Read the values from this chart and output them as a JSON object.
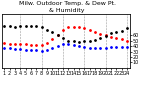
{
  "title": "Milw. Outdoor Temp. & Dew Pt.",
  "title2": "& Humidity",
  "background_color": "#ffffff",
  "plot_bg_color": "#ffffff",
  "grid_color": "#999999",
  "temp_color": "#ff0000",
  "dew_color": "#0000ff",
  "humidity_color": "#000000",
  "hours": [
    1,
    2,
    3,
    4,
    5,
    6,
    7,
    8,
    9,
    10,
    11,
    12,
    13,
    14,
    15,
    16,
    17,
    18,
    19,
    20,
    21,
    22,
    23,
    24
  ],
  "temp": [
    28,
    27,
    27,
    26,
    26,
    25,
    25,
    25,
    28,
    32,
    37,
    42,
    45,
    46,
    46,
    44,
    42,
    40,
    38,
    36,
    34,
    33,
    32,
    30
  ],
  "dew": [
    22,
    22,
    21,
    21,
    20,
    20,
    20,
    19,
    20,
    22,
    24,
    26,
    26,
    25,
    24,
    23,
    22,
    22,
    22,
    22,
    23,
    23,
    23,
    23
  ],
  "humidity": [
    77,
    78,
    76,
    78,
    77,
    78,
    78,
    75,
    70,
    67,
    60,
    55,
    50,
    49,
    48,
    49,
    50,
    52,
    56,
    59,
    65,
    67,
    69,
    73
  ],
  "temp_ylim": [
    0,
    60
  ],
  "hum_ylim": [
    0,
    100
  ],
  "y_right_ticks": [
    10,
    20,
    30,
    40,
    50,
    60
  ],
  "vline_positions": [
    4,
    8,
    12,
    16,
    20,
    24
  ],
  "markersize": 2.0,
  "title_fontsize": 4.5,
  "tick_fontsize": 3.5,
  "x_ticks": [
    1,
    2,
    3,
    4,
    5,
    6,
    7,
    8,
    9,
    10,
    11,
    12,
    13,
    14,
    15,
    16,
    17,
    18,
    19,
    20,
    21,
    22,
    23,
    24
  ]
}
